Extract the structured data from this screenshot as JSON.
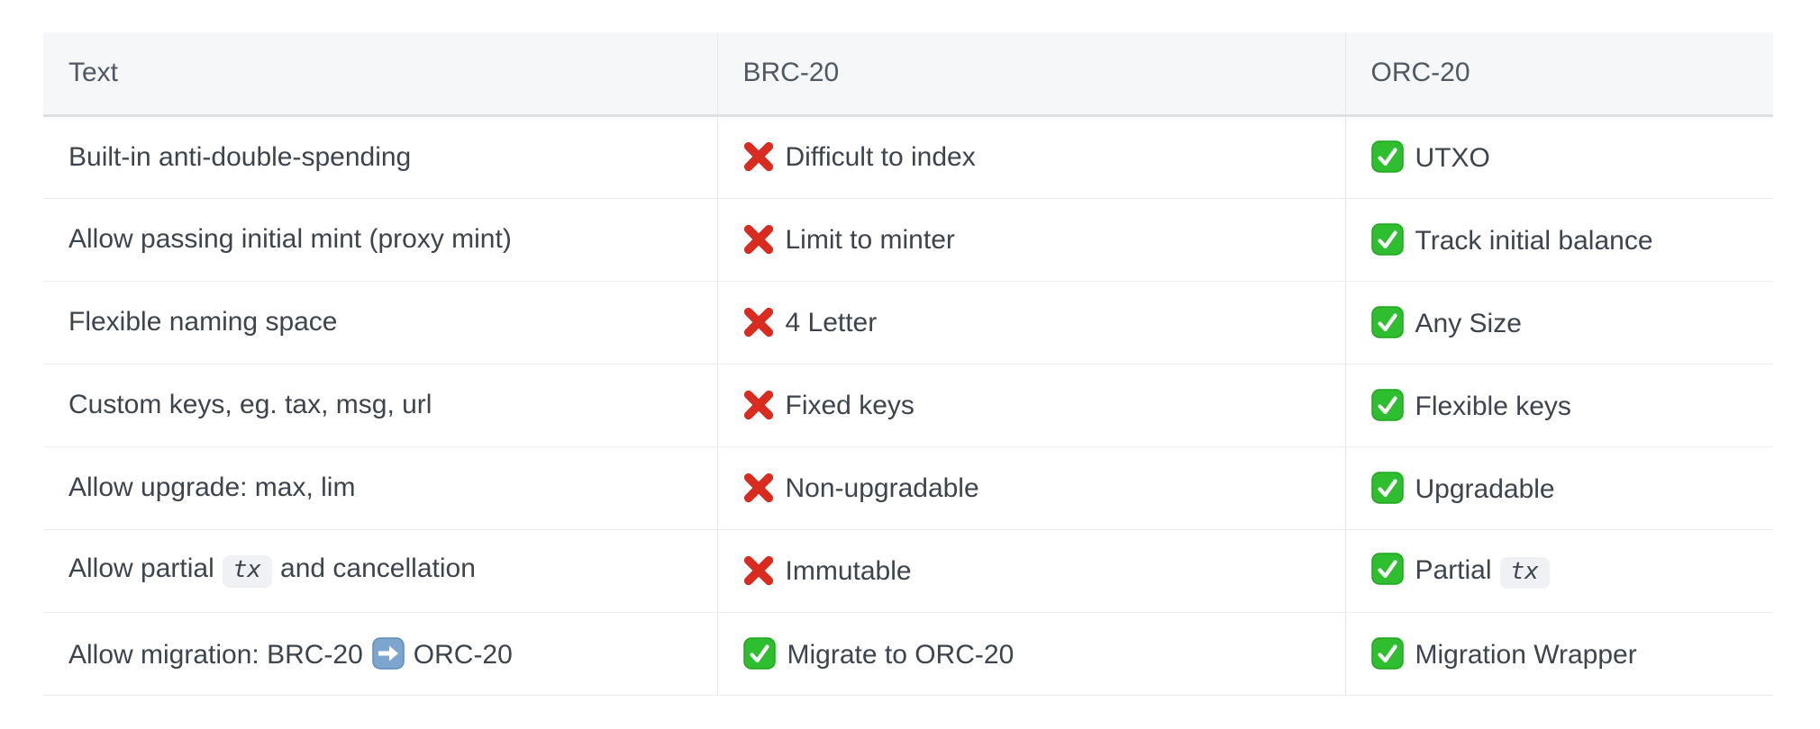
{
  "table": {
    "columns": [
      {
        "id": "text",
        "label": "Text"
      },
      {
        "id": "brc20",
        "label": "BRC-20"
      },
      {
        "id": "orc20",
        "label": "ORC-20"
      }
    ],
    "rows": [
      {
        "cells": [
          {
            "segments": [
              {
                "t": "text",
                "v": "Built-in anti-double-spending"
              }
            ]
          },
          {
            "segments": [
              {
                "t": "icon",
                "name": "cross-mark-icon"
              },
              {
                "t": "text",
                "v": "Difficult to index"
              }
            ]
          },
          {
            "segments": [
              {
                "t": "icon",
                "name": "check-mark-icon"
              },
              {
                "t": "text",
                "v": "UTXO"
              }
            ]
          }
        ]
      },
      {
        "cells": [
          {
            "segments": [
              {
                "t": "text",
                "v": "Allow passing initial mint (proxy mint)"
              }
            ]
          },
          {
            "segments": [
              {
                "t": "icon",
                "name": "cross-mark-icon"
              },
              {
                "t": "text",
                "v": "Limit to minter"
              }
            ]
          },
          {
            "segments": [
              {
                "t": "icon",
                "name": "check-mark-icon"
              },
              {
                "t": "text",
                "v": "Track initial balance"
              }
            ]
          }
        ]
      },
      {
        "cells": [
          {
            "segments": [
              {
                "t": "text",
                "v": "Flexible naming space"
              }
            ]
          },
          {
            "segments": [
              {
                "t": "icon",
                "name": "cross-mark-icon"
              },
              {
                "t": "text",
                "v": "4 Letter"
              }
            ]
          },
          {
            "segments": [
              {
                "t": "icon",
                "name": "check-mark-icon"
              },
              {
                "t": "text",
                "v": "Any Size"
              }
            ]
          }
        ]
      },
      {
        "cells": [
          {
            "segments": [
              {
                "t": "text",
                "v": "Custom keys, eg. tax, msg, url"
              }
            ]
          },
          {
            "segments": [
              {
                "t": "icon",
                "name": "cross-mark-icon"
              },
              {
                "t": "text",
                "v": "Fixed keys"
              }
            ]
          },
          {
            "segments": [
              {
                "t": "icon",
                "name": "check-mark-icon"
              },
              {
                "t": "text",
                "v": "Flexible keys"
              }
            ]
          }
        ]
      },
      {
        "cells": [
          {
            "segments": [
              {
                "t": "text",
                "v": "Allow upgrade: max, lim"
              }
            ]
          },
          {
            "segments": [
              {
                "t": "icon",
                "name": "cross-mark-icon"
              },
              {
                "t": "text",
                "v": "Non-upgradable"
              }
            ]
          },
          {
            "segments": [
              {
                "t": "icon",
                "name": "check-mark-icon"
              },
              {
                "t": "text",
                "v": "Upgradable"
              }
            ]
          }
        ]
      },
      {
        "cells": [
          {
            "segments": [
              {
                "t": "text",
                "v": "Allow partial"
              },
              {
                "t": "code",
                "v": "tx"
              },
              {
                "t": "text",
                "v": "and cancellation"
              }
            ]
          },
          {
            "segments": [
              {
                "t": "icon",
                "name": "cross-mark-icon"
              },
              {
                "t": "text",
                "v": "Immutable"
              }
            ]
          },
          {
            "segments": [
              {
                "t": "icon",
                "name": "check-mark-icon"
              },
              {
                "t": "text",
                "v": "Partial"
              },
              {
                "t": "code",
                "v": "tx"
              }
            ]
          }
        ]
      },
      {
        "cells": [
          {
            "segments": [
              {
                "t": "text",
                "v": "Allow migration: BRC-20"
              },
              {
                "t": "icon",
                "name": "arrow-right-icon"
              },
              {
                "t": "text",
                "v": "ORC-20"
              }
            ]
          },
          {
            "segments": [
              {
                "t": "icon",
                "name": "check-mark-icon"
              },
              {
                "t": "text",
                "v": "Migrate to ORC-20"
              }
            ]
          },
          {
            "segments": [
              {
                "t": "icon",
                "name": "check-mark-icon"
              },
              {
                "t": "text",
                "v": "Migration Wrapper"
              }
            ]
          }
        ]
      }
    ]
  },
  "colors": {
    "header_bg": "#f6f7f9",
    "header_text": "#4f5963",
    "body_text": "#3d444d",
    "row_border": "#edeef1",
    "column_border": "#e5e7ea",
    "header_bottom_border": "#dcdfe3",
    "code_chip_bg": "#f0f1f4",
    "cross_red": "#da2b1f",
    "check_green": "#2fbe2f",
    "check_green_dark": "#1fa51f",
    "arrow_blue": "#7ca6d0",
    "arrow_blue_dark": "#5f8cb8"
  }
}
